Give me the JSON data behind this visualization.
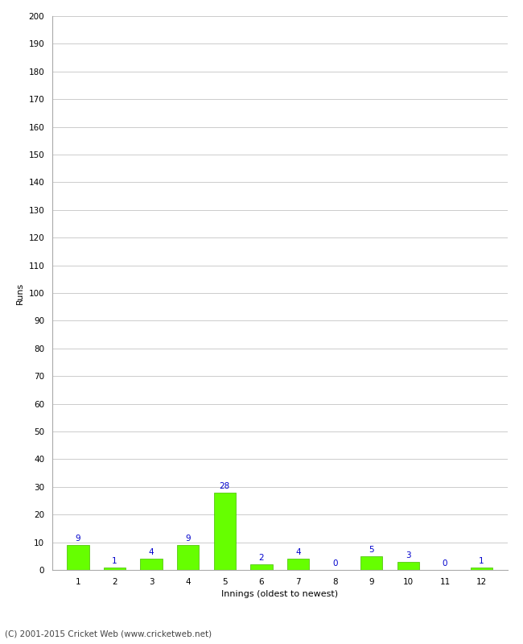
{
  "categories": [
    "1",
    "2",
    "3",
    "4",
    "5",
    "6",
    "7",
    "8",
    "9",
    "10",
    "11",
    "12"
  ],
  "values": [
    9,
    1,
    4,
    9,
    28,
    2,
    4,
    0,
    5,
    3,
    0,
    1
  ],
  "bar_color": "#66ff00",
  "bar_edge_color": "#44bb00",
  "label_color": "#0000cc",
  "xlabel": "Innings (oldest to newest)",
  "ylabel": "Runs",
  "ylim": [
    0,
    200
  ],
  "ytick_step": 10,
  "background_color": "#ffffff",
  "grid_color": "#cccccc",
  "footer": "(C) 2001-2015 Cricket Web (www.cricketweb.net)",
  "label_fontsize": 7.5,
  "axis_label_fontsize": 8,
  "tick_fontsize": 7.5,
  "footer_fontsize": 7.5
}
